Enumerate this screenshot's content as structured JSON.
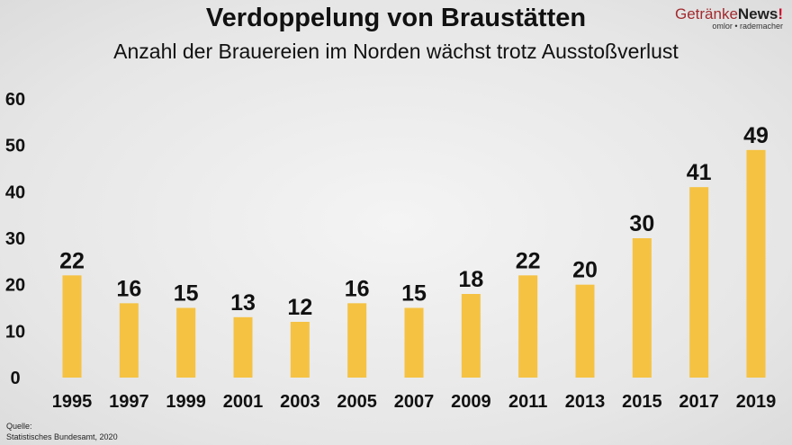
{
  "chart_data": {
    "type": "bar",
    "title": "Verdoppelung von Braustätten",
    "subtitle": "Anzahl der Brauereien im Norden wächst trotz Ausstoßverlust",
    "categories": [
      "1995",
      "1997",
      "1999",
      "2001",
      "2003",
      "2005",
      "2007",
      "2009",
      "2011",
      "2013",
      "2015",
      "2017",
      "2019"
    ],
    "values": [
      22,
      16,
      15,
      13,
      12,
      16,
      15,
      18,
      22,
      20,
      30,
      41,
      49
    ],
    "yticks": [
      0,
      10,
      20,
      30,
      40,
      50,
      60
    ],
    "ylim": [
      0,
      60
    ],
    "grid": false,
    "data_labels": true,
    "bar_color": "#f5c242"
  },
  "logo": {
    "brand_a": "Getränke",
    "brand_b": "News",
    "brand_c": "!",
    "tagline": "omlor • rademacher"
  },
  "source": {
    "label": "Quelle:",
    "text": "Statistisches Bundesamt, 2020"
  }
}
